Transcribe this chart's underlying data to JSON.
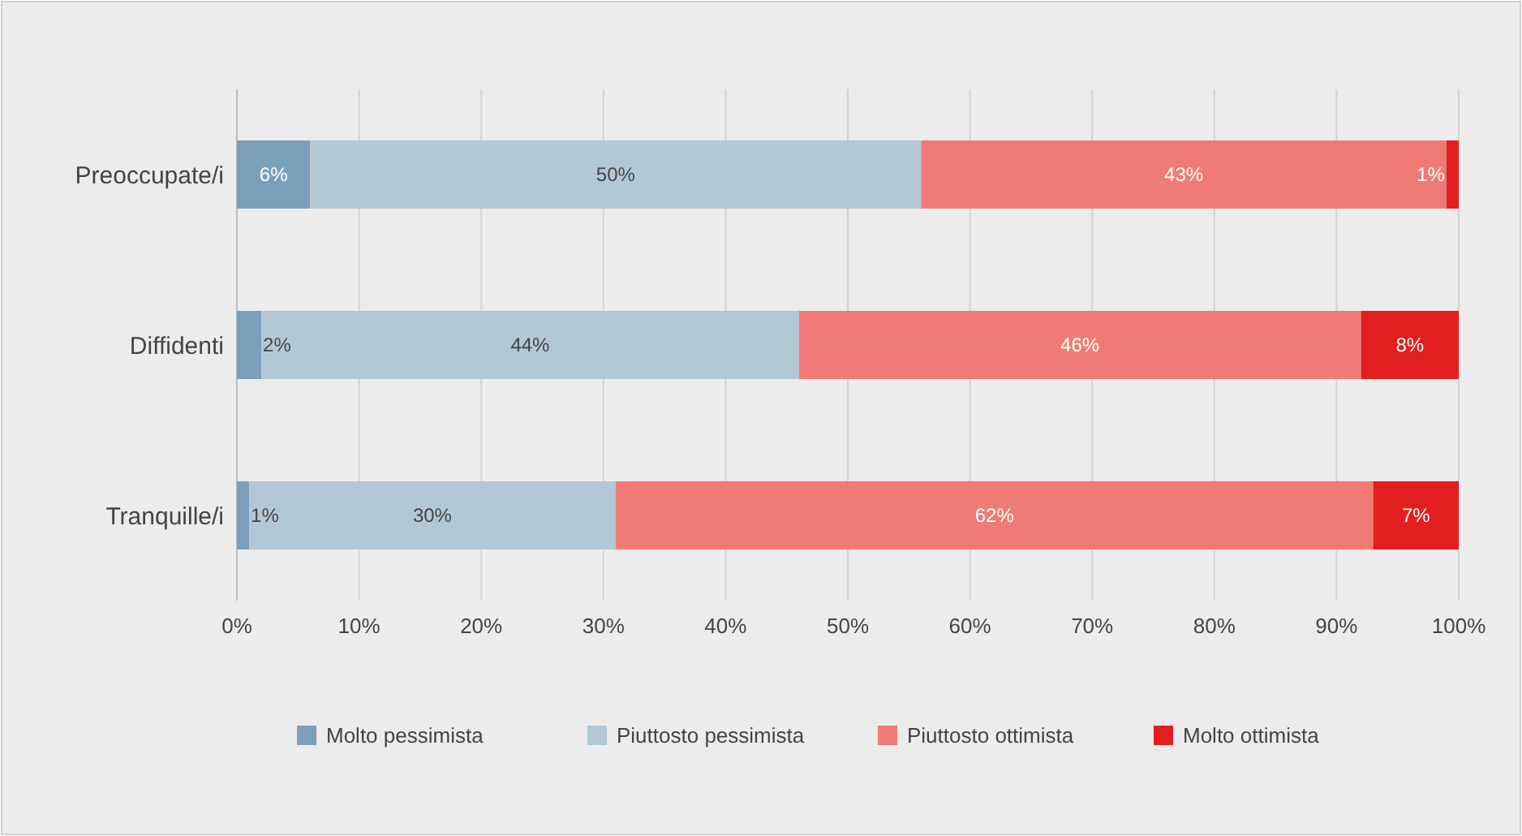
{
  "chart_data": {
    "type": "bar",
    "orientation": "horizontal",
    "stacked": true,
    "categories": [
      "Preoccupate/i",
      "Diffidenti",
      "Tranquille/i"
    ],
    "series": [
      {
        "name": "Molto pessimista",
        "color": "#7ba0bb",
        "values": [
          6,
          2,
          1
        ],
        "value_labels": [
          "6%",
          "2%",
          "1%"
        ]
      },
      {
        "name": "Piuttosto pessimista",
        "color": "#b3c8d5",
        "values": [
          50,
          44,
          30
        ],
        "value_labels": [
          "50%",
          "44%",
          "30%"
        ]
      },
      {
        "name": "Piuttosto ottimista",
        "color": "#f07b76",
        "values": [
          43,
          46,
          62
        ],
        "value_labels": [
          "43%",
          "46%",
          "62%"
        ]
      },
      {
        "name": "Molto ottimista",
        "color": "#e31e1e",
        "values": [
          1,
          8,
          7
        ],
        "value_labels": [
          "1%",
          "8%",
          "7%"
        ]
      }
    ],
    "xlim": [
      0,
      100
    ],
    "xticks": [
      {
        "value": 0,
        "label": "0%"
      },
      {
        "value": 10,
        "label": "10%"
      },
      {
        "value": 20,
        "label": "20%"
      },
      {
        "value": 30,
        "label": "30%"
      },
      {
        "value": 40,
        "label": "40%"
      },
      {
        "value": 50,
        "label": "50%"
      },
      {
        "value": 60,
        "label": "60%"
      },
      {
        "value": 70,
        "label": "70%"
      },
      {
        "value": 80,
        "label": "80%"
      },
      {
        "value": 90,
        "label": "90%"
      },
      {
        "value": 100,
        "label": "100%"
      }
    ],
    "grid": "x",
    "legend": "bottom"
  }
}
